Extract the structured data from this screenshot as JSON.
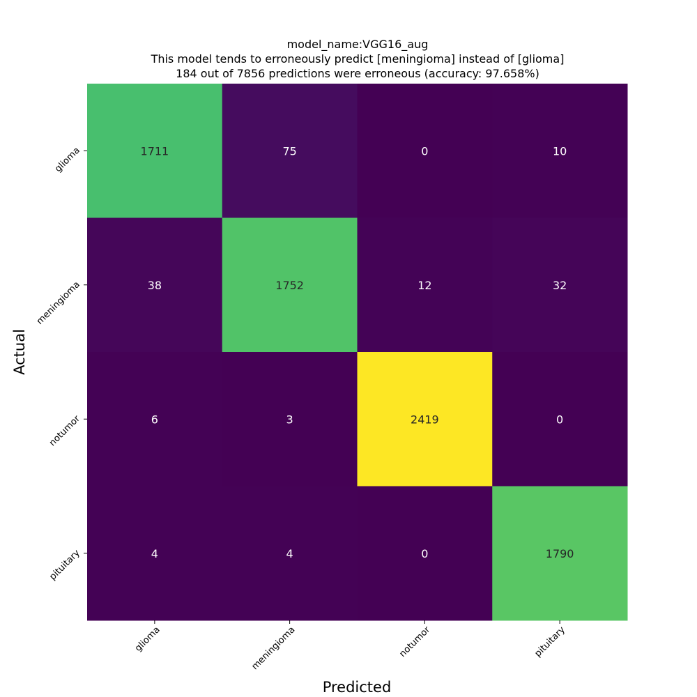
{
  "chart_data": {
    "type": "heatmap",
    "title_lines": [
      "model_name:VGG16_aug",
      "This model tends to erroneously predict [meningioma] instead of [glioma]",
      "184 out of 7856 predictions were erroneous (accuracy: 97.658%)"
    ],
    "xlabel": "Predicted",
    "ylabel": "Actual",
    "x_categories": [
      "glioma",
      "meningioma",
      "notumor",
      "pituitary"
    ],
    "y_categories": [
      "glioma",
      "meningioma",
      "notumor",
      "pituitary"
    ],
    "matrix": [
      [
        1711,
        75,
        0,
        10
      ],
      [
        38,
        1752,
        12,
        32
      ],
      [
        6,
        3,
        2419,
        0
      ],
      [
        4,
        4,
        0,
        1790
      ]
    ],
    "colormap": "viridis",
    "vmin": 0,
    "vmax": 2419,
    "colorbar": false,
    "grid": false
  }
}
